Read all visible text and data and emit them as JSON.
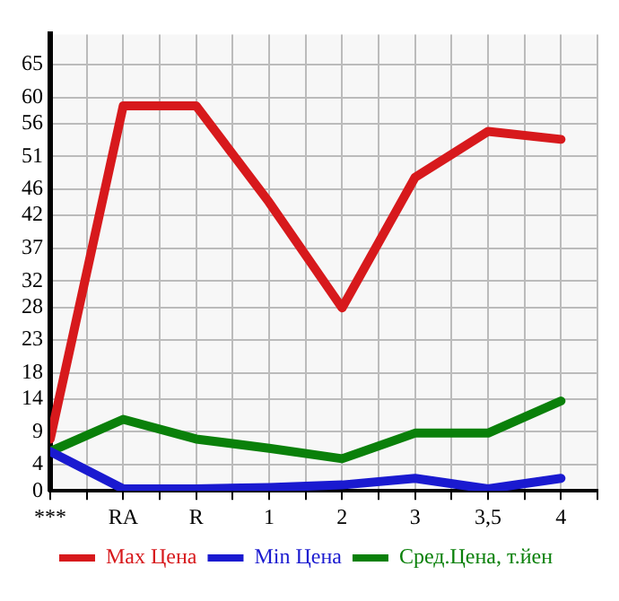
{
  "chart_data": {
    "type": "line",
    "categories": [
      "***",
      "RA",
      "R",
      "1",
      "2",
      "3",
      "3,5",
      "4"
    ],
    "ylim": [
      0,
      69.6
    ],
    "yticks": [
      0,
      4,
      9,
      14,
      18,
      23,
      28,
      32,
      37,
      42,
      46,
      51,
      56,
      60,
      65
    ],
    "series": [
      {
        "name": "Max Цена",
        "color": "#d7191c",
        "values": [
          7.9,
          58.7,
          58.7,
          44,
          27.9,
          47.8,
          54.8,
          53.6
        ]
      },
      {
        "name": "Min Цена",
        "color": "#1a1ad0",
        "values": [
          6,
          0.3,
          0.3,
          0.5,
          0.9,
          1.9,
          0.3,
          1.9
        ]
      },
      {
        "name": "Сред.Цена, т.йен",
        "color": "#0a800a",
        "values": [
          6,
          10.9,
          7.9,
          6.5,
          4.9,
          8.8,
          8.8,
          13.7
        ]
      }
    ],
    "grid": true,
    "legend": "bottom",
    "marker": "none",
    "line_style": "solid"
  }
}
